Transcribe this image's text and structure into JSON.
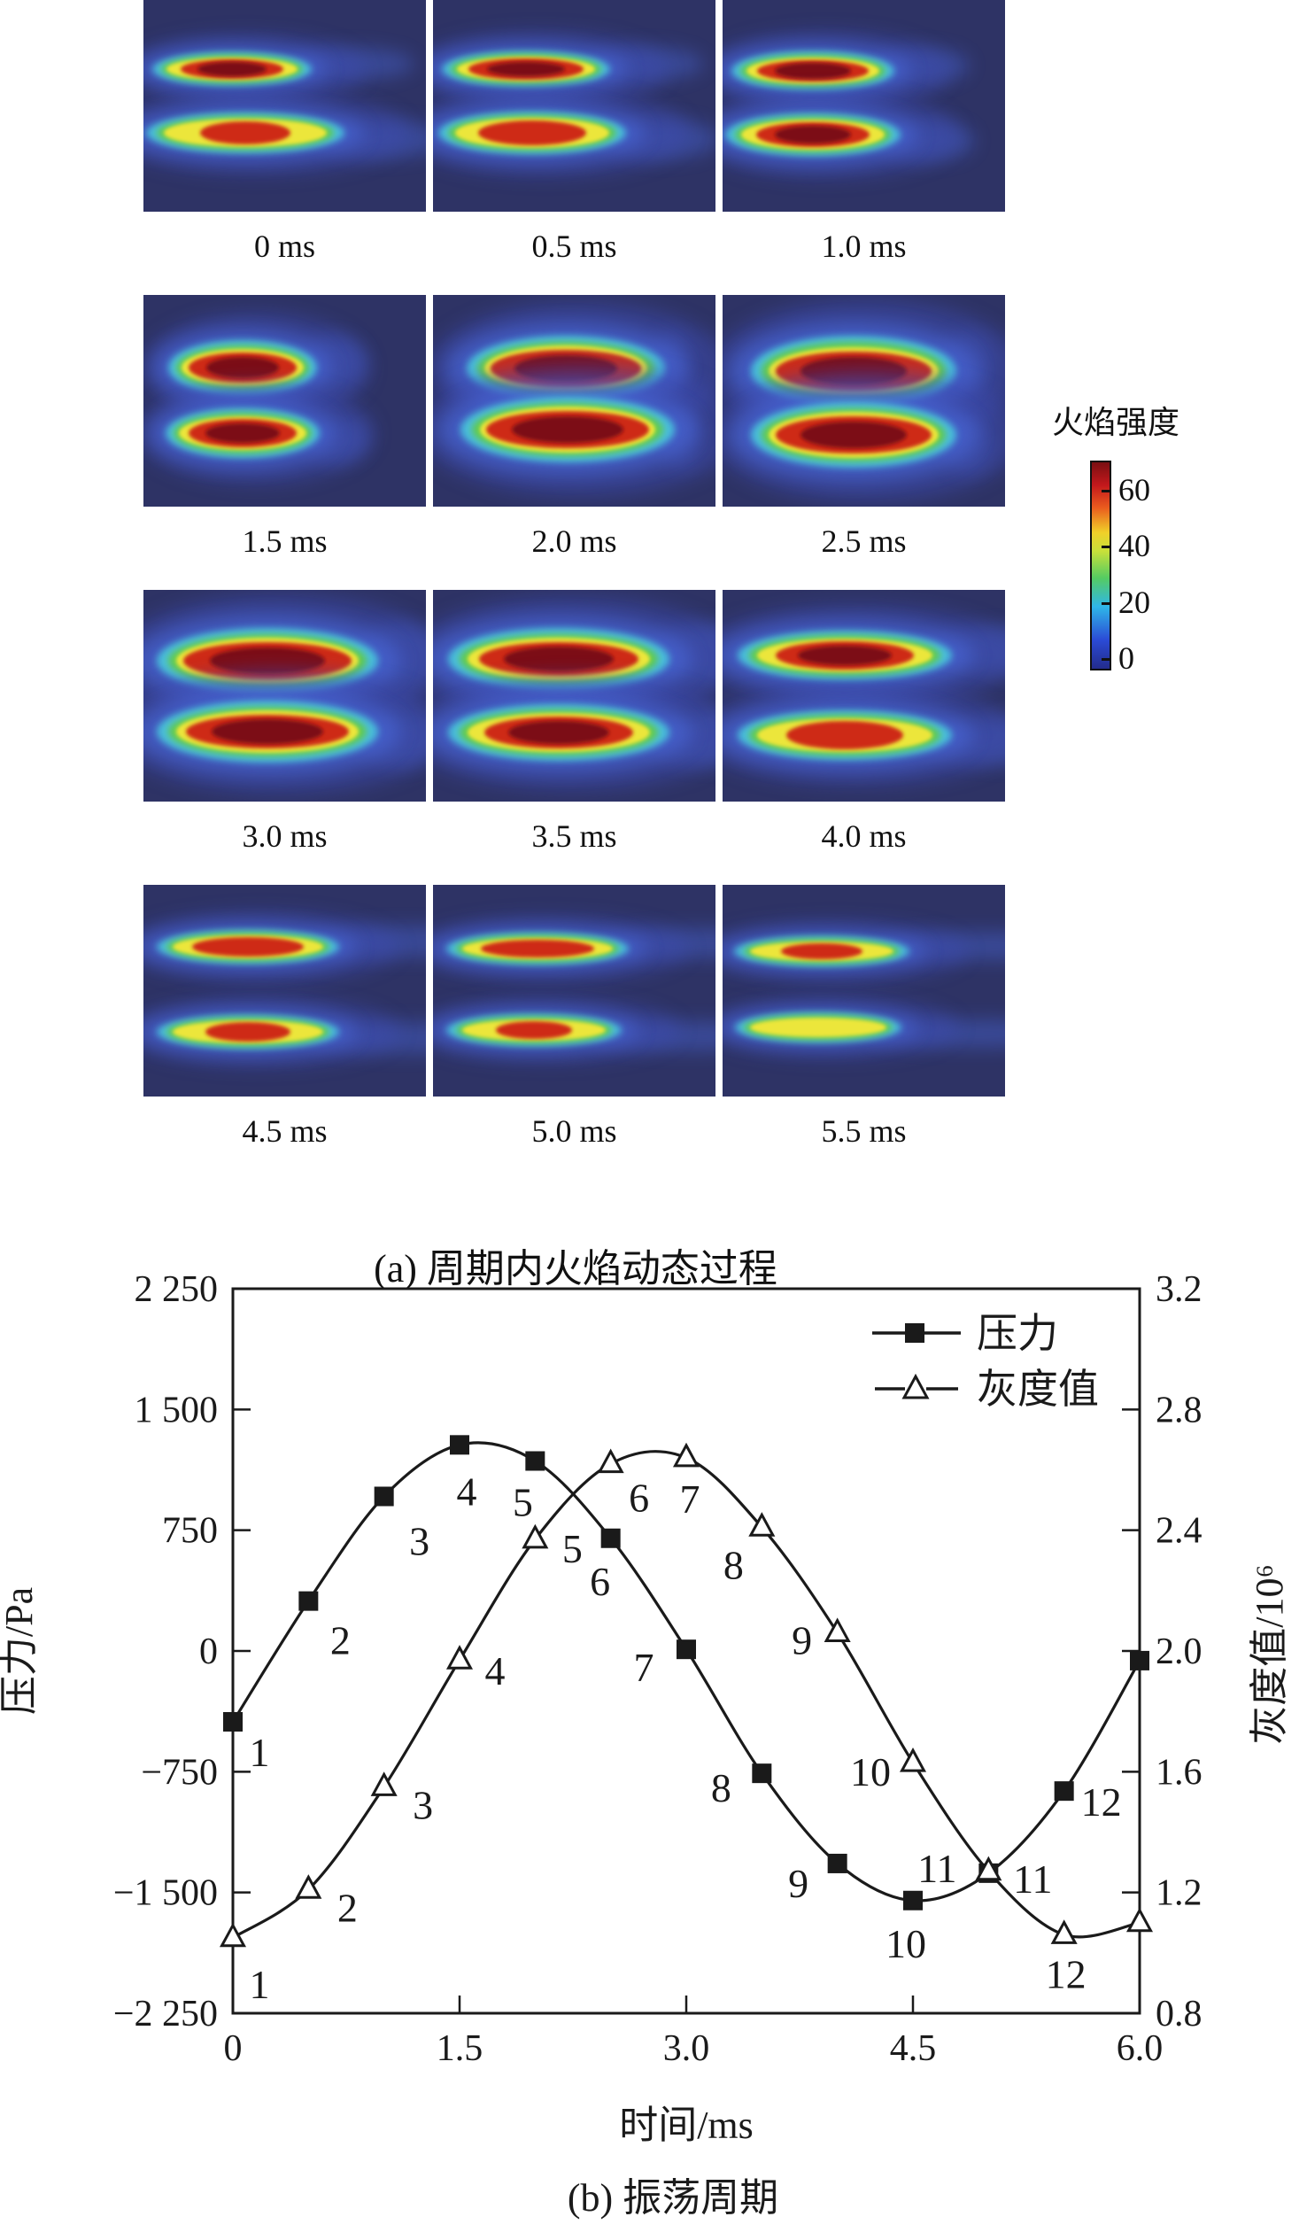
{
  "captions": {
    "a": "(a) 周期内火焰动态过程",
    "b": "(b) 振荡周期"
  },
  "flame_section": {
    "colorbar": {
      "title": "火焰强度",
      "tick_values": [
        60,
        40,
        20,
        0
      ],
      "tick_labels": [
        "60",
        "40",
        "20",
        "0"
      ],
      "range": [
        0,
        70
      ]
    },
    "panels": [
      {
        "label": "0 ms",
        "up": [
          100,
          78,
          80,
          15,
          0.85
        ],
        "lo": [
          115,
          150,
          100,
          18,
          0.6
        ],
        "tail": 120
      },
      {
        "label": "0.5 ms",
        "up": [
          105,
          78,
          85,
          16,
          0.9
        ],
        "lo": [
          112,
          150,
          95,
          19,
          0.75
        ],
        "tail": 110
      },
      {
        "label": "1.0 ms",
        "up": [
          102,
          80,
          82,
          17,
          0.9
        ],
        "lo": [
          102,
          152,
          88,
          19,
          0.85
        ],
        "tail": 90
      },
      {
        "label": "1.5 ms",
        "up": [
          112,
          82,
          75,
          24,
          0.95
        ],
        "lo": [
          112,
          156,
          78,
          22,
          0.92
        ],
        "tail": 60
      },
      {
        "label": "2.0 ms",
        "up": [
          150,
          83,
          100,
          29,
          1.0
        ],
        "lo": [
          152,
          152,
          108,
          29,
          1.0
        ],
        "tail": 40
      },
      {
        "label": "2.5 ms",
        "up": [
          148,
          86,
          104,
          31,
          1.0
        ],
        "lo": [
          148,
          158,
          104,
          29,
          1.0
        ],
        "tail": 50
      },
      {
        "label": "3.0 ms",
        "up": [
          140,
          80,
          112,
          29,
          1.0
        ],
        "lo": [
          140,
          160,
          112,
          27,
          0.97
        ],
        "tail": 80
      },
      {
        "label": "3.5 ms",
        "up": [
          142,
          78,
          112,
          27,
          0.95
        ],
        "lo": [
          142,
          161,
          112,
          25,
          0.88
        ],
        "tail": 120
      },
      {
        "label": "4.0 ms",
        "up": [
          138,
          74,
          108,
          22,
          0.85
        ],
        "lo": [
          138,
          164,
          108,
          22,
          0.72
        ],
        "tail": 160
      },
      {
        "label": "4.5 ms",
        "up": [
          118,
          70,
          92,
          15,
          0.8
        ],
        "lo": [
          118,
          166,
          92,
          15,
          0.62
        ],
        "tail": 185
      },
      {
        "label": "5.0 ms",
        "up": [
          118,
          72,
          92,
          14,
          0.82
        ],
        "lo": [
          114,
          164,
          88,
          14,
          0.58
        ],
        "tail": 185
      },
      {
        "label": "5.5 ms",
        "up": [
          112,
          75,
          88,
          13,
          0.62
        ],
        "lo": [
          108,
          161,
          84,
          13,
          0.5
        ],
        "tail": 195
      }
    ]
  },
  "chart_data": {
    "type": "line",
    "x": [
      0,
      0.5,
      1.0,
      1.5,
      2.0,
      2.5,
      3.0,
      3.5,
      4.0,
      4.5,
      5.0,
      5.5,
      6.0
    ],
    "series": [
      {
        "name": "压力",
        "axis": "left",
        "marker": "square",
        "values": [
          -440,
          310,
          960,
          1280,
          1180,
          700,
          10,
          -760,
          -1320,
          -1550,
          -1380,
          -870,
          -60
        ],
        "point_labels": [
          "1",
          "2",
          "3",
          "4",
          "5",
          "6",
          "7",
          "8",
          "9",
          "10",
          "11",
          "12",
          ""
        ],
        "label_dx": [
          30,
          36,
          40,
          8,
          -14,
          -12,
          -48,
          -46,
          -44,
          -8,
          -58,
          42,
          0
        ],
        "label_dy": [
          34,
          44,
          50,
          52,
          46,
          48,
          20,
          16,
          22,
          48,
          -6,
          12,
          0
        ]
      },
      {
        "name": "灰度值",
        "axis": "right",
        "marker": "triangle",
        "values": [
          1.05,
          1.21,
          1.55,
          1.97,
          2.37,
          2.62,
          2.64,
          2.41,
          2.06,
          1.63,
          1.27,
          1.06,
          1.1
        ],
        "point_labels": [
          "1",
          "2",
          "3",
          "4",
          "5",
          "6",
          "7",
          "8",
          "9",
          "10",
          "11",
          "12",
          ""
        ],
        "label_dx": [
          30,
          44,
          44,
          40,
          42,
          32,
          4,
          -32,
          -40,
          -48,
          50,
          2,
          0
        ],
        "label_dy": [
          52,
          20,
          20,
          12,
          10,
          38,
          46,
          42,
          8,
          10,
          8,
          44,
          0
        ]
      }
    ],
    "xlabel": "时间/ms",
    "ylabel_left": "压力/Pa",
    "ylabel_right": "灰度值/10⁶",
    "xlim": [
      0,
      6
    ],
    "ylim_left": [
      -2250,
      2250
    ],
    "ylim_right": [
      0.8,
      3.2
    ],
    "xticks": {
      "values": [
        0,
        1.5,
        3.0,
        4.5,
        6.0
      ],
      "labels": [
        "0",
        "1.5",
        "3.0",
        "4.5",
        "6.0"
      ]
    },
    "yticks_left": {
      "values": [
        2250,
        1500,
        750,
        0,
        -750,
        -1500,
        -2250
      ],
      "labels": [
        "2 250",
        "1 500",
        "750",
        "0",
        "−750",
        "−1 500",
        "−2 250"
      ]
    },
    "yticks_right": {
      "values": [
        3.2,
        2.8,
        2.4,
        2.0,
        1.6,
        1.2,
        0.8
      ],
      "labels": [
        "3.2",
        "2.8",
        "2.4",
        "2.0",
        "1.6",
        "1.2",
        "0.8"
      ]
    },
    "legend": [
      {
        "label": "压力",
        "marker": "square"
      },
      {
        "label": "灰度值",
        "marker": "triangle"
      }
    ],
    "legend_position": "top-right",
    "grid": false
  },
  "colors": {
    "flame_bg": "#2e3365",
    "haze": "#3c4cb0",
    "glow": "#4663d2",
    "cyan": "#49c3dc",
    "green": "#62cb4d",
    "yellow": "#ece63b",
    "red": "#ce2b15",
    "darkred": "#7c1115",
    "line": "#1a1a1a"
  }
}
